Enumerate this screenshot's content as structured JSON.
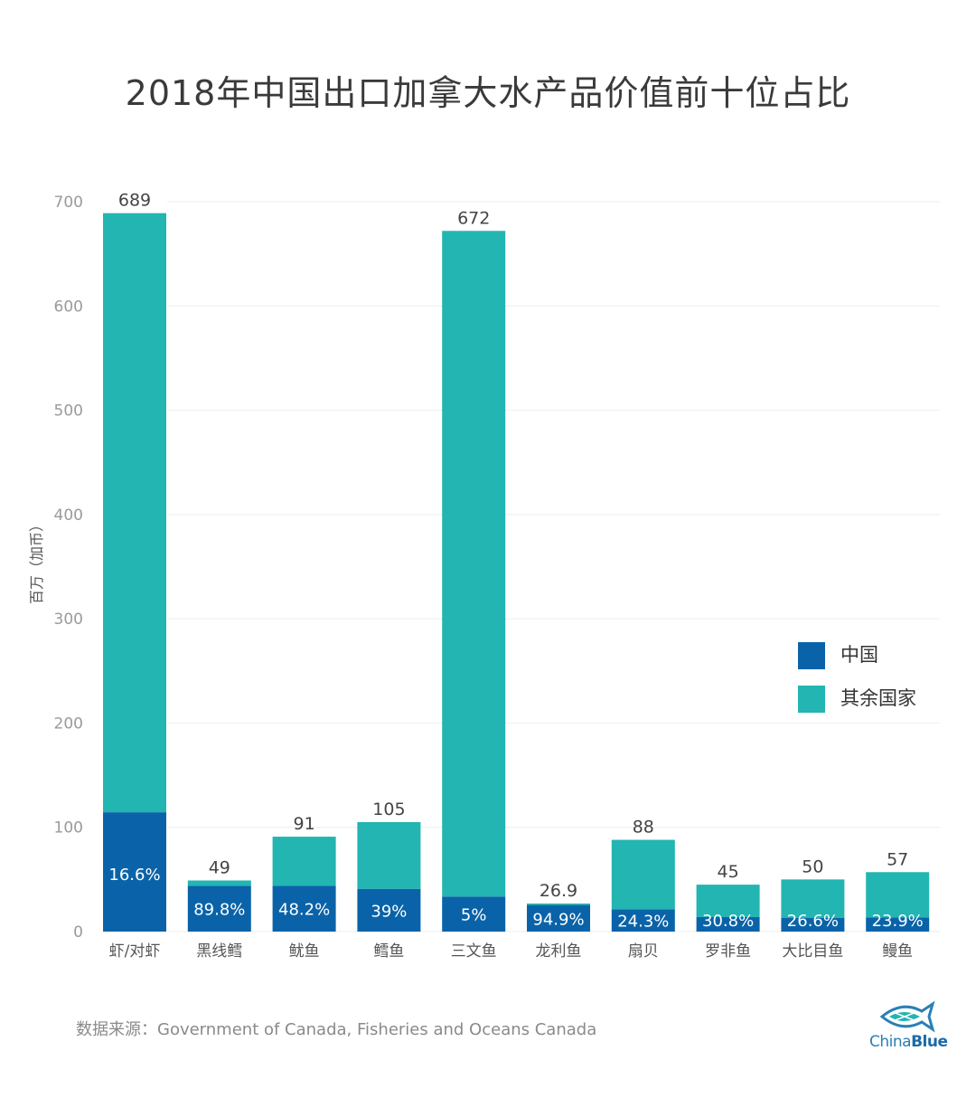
{
  "title": "2018年中国出口加拿大水产品价值前十位占比",
  "source": "数据来源：Government of Canada, Fisheries and Oceans Canada",
  "logo": {
    "prefix": "China",
    "suffix": "Blue"
  },
  "colors": {
    "china": "#0a63a8",
    "other": "#22b5b2",
    "grid": "#eeeeee",
    "axis_text": "#9a9a9a"
  },
  "chart_data": {
    "type": "bar",
    "stacked": true,
    "title": "2018年中国出口加拿大水产品价值前十位占比",
    "ylabel": "百万（加币）",
    "ylim": [
      0,
      700
    ],
    "yticks": [
      0,
      100,
      200,
      300,
      400,
      500,
      600,
      700
    ],
    "grid": true,
    "legend_position": "right",
    "categories": [
      "虾/对虾",
      "黑线鳕",
      "鱿鱼",
      "鳕鱼",
      "三文鱼",
      "龙利鱼",
      "扇贝",
      "罗非鱼",
      "大比目鱼",
      "鳗鱼"
    ],
    "totals": [
      689,
      49,
      91,
      105,
      672,
      26.9,
      88,
      45,
      50,
      57
    ],
    "total_labels": [
      "689",
      "49",
      "91",
      "105",
      "672",
      "26.9",
      "88",
      "45",
      "50",
      "57"
    ],
    "china_share_labels": [
      "16.6%",
      "89.8%",
      "48.2%",
      "39%",
      "5%",
      "94.9%",
      "24.3%",
      "30.8%",
      "26.6%",
      "23.9%"
    ],
    "series": [
      {
        "name": "中国",
        "values": [
          114.4,
          44.0,
          43.9,
          41.0,
          33.6,
          25.5,
          21.4,
          13.9,
          13.3,
          13.6
        ]
      },
      {
        "name": "其余国家",
        "values": [
          574.6,
          5.0,
          47.1,
          64.0,
          638.4,
          1.4,
          66.6,
          31.1,
          36.7,
          43.4
        ]
      }
    ]
  }
}
